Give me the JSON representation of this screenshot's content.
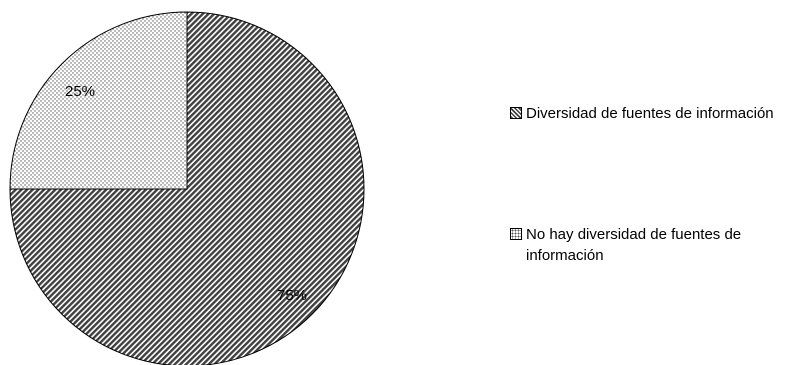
{
  "chart_data": {
    "type": "pie",
    "title": "",
    "slices": [
      {
        "label": "Diversidad de fuentes de información",
        "value": 75,
        "display": "75%",
        "pattern": "diagonal-hatch"
      },
      {
        "label": "No hay diversidad de fuentes de información",
        "value": 25,
        "display": "25%",
        "pattern": "dotted"
      }
    ],
    "legend_position": "right",
    "colors": {
      "hatch": "#404040",
      "dots": "#555555",
      "stroke": "#000000",
      "background": "#ffffff"
    }
  }
}
